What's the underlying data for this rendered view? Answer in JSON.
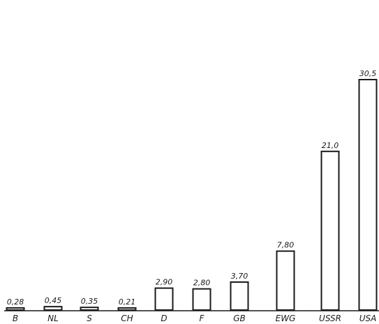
{
  "chart_data": {
    "type": "bar",
    "categories": [
      "B",
      "NL",
      "S",
      "CH",
      "D",
      "F",
      "GB",
      "EWG",
      "USSR",
      "USA"
    ],
    "values": [
      0.28,
      0.45,
      0.35,
      0.21,
      2.9,
      2.8,
      3.7,
      7.8,
      21.0,
      30.5
    ],
    "value_labels": [
      "0,28",
      "0,45",
      "0,35",
      "0,21",
      "2,90",
      "2,80",
      "3,70",
      "7,80",
      "21,0",
      "30,5"
    ],
    "title": "",
    "xlabel": "",
    "ylabel": "",
    "ylim": [
      0,
      30.5
    ],
    "grid": false,
    "colors": {
      "bar_fill": "#ffffff",
      "bar_stroke": "#1a1a1a",
      "text": "#1a1a1a"
    }
  }
}
